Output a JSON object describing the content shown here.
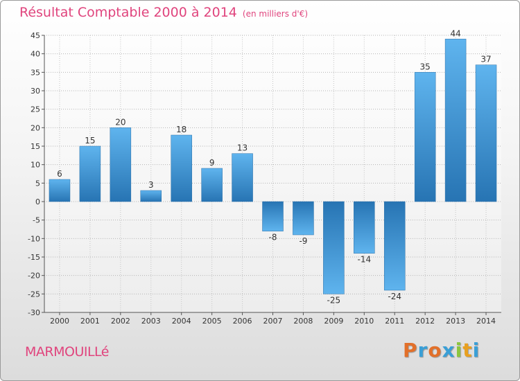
{
  "chart_data": {
    "type": "bar",
    "title": "Résultat Comptable 2000 à 2014",
    "unit": "(en milliers d'€)",
    "categories": [
      "2000",
      "2001",
      "2002",
      "2003",
      "2004",
      "2005",
      "2006",
      "2007",
      "2008",
      "2009",
      "2010",
      "2011",
      "2012",
      "2013",
      "2014"
    ],
    "values": [
      6,
      15,
      20,
      3,
      18,
      9,
      13,
      -8,
      -9,
      -25,
      -14,
      -24,
      35,
      44,
      37
    ],
    "ylim": [
      -30,
      45
    ],
    "yticks": [
      45,
      40,
      35,
      30,
      25,
      20,
      15,
      10,
      5,
      0,
      -5,
      -10,
      -15,
      -20,
      -25,
      -30
    ],
    "grid": true,
    "bar_color": "#3d8fd1"
  },
  "footer": {
    "commune": "MARMOUILLé",
    "logo_letters": [
      "P",
      "r",
      "o",
      "x",
      "i",
      "t",
      "i"
    ],
    "logo_colors": [
      "#e2702a",
      "#3a9fd6",
      "#e2702a",
      "#3a9fd6",
      "#8cc63f",
      "#e8a020",
      "#3a9fd6"
    ]
  }
}
